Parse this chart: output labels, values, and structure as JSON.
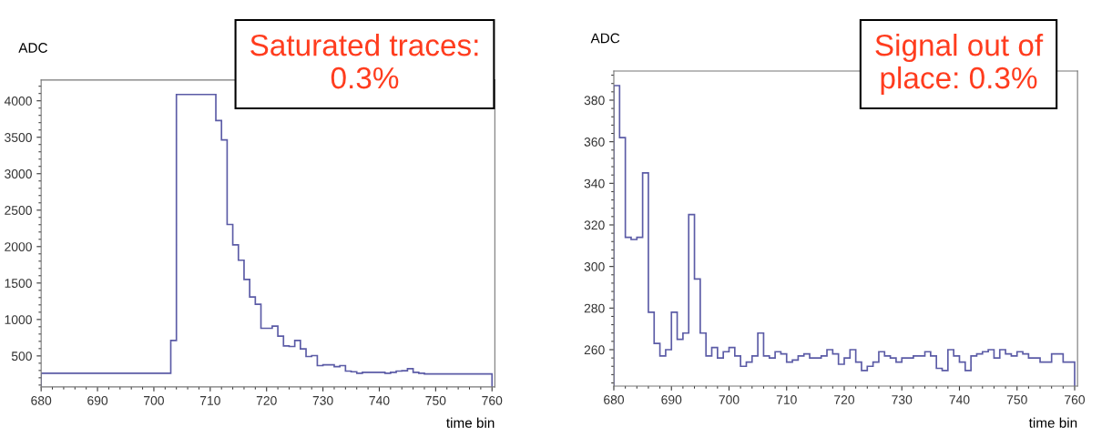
{
  "chart_data": [
    {
      "type": "histogram",
      "ylabel": "ADC",
      "xlabel": "time bin",
      "annotations": [
        "Saturated traces:\n0.3%"
      ],
      "color": "#5b5ba6",
      "bins": [
        680,
        681,
        682,
        683,
        684,
        685,
        686,
        687,
        688,
        689,
        690,
        691,
        692,
        693,
        694,
        695,
        696,
        697,
        698,
        699,
        700,
        701,
        702,
        703,
        704,
        705,
        706,
        707,
        708,
        709,
        710,
        711,
        712,
        713,
        714,
        715,
        716,
        717,
        718,
        719,
        720,
        721,
        722,
        723,
        724,
        725,
        726,
        727,
        728,
        729,
        730,
        731,
        732,
        733,
        734,
        735,
        736,
        737,
        738,
        739,
        740,
        741,
        742,
        743,
        744,
        745,
        746,
        747,
        748,
        749,
        750,
        751,
        752,
        753,
        754,
        755,
        756,
        757,
        758,
        759,
        760
      ],
      "values": [
        262,
        262,
        262,
        262,
        262,
        262,
        262,
        262,
        262,
        262,
        262,
        262,
        262,
        262,
        262,
        262,
        262,
        262,
        262,
        262,
        262,
        262,
        262,
        712,
        4087,
        4087,
        4087,
        4087,
        4087,
        4087,
        4087,
        3729,
        3463,
        2304,
        2025,
        1813,
        1550,
        1308,
        1208,
        879,
        879,
        908,
        771,
        638,
        629,
        713,
        596,
        492,
        504,
        367,
        379,
        379,
        354,
        367,
        292,
        283,
        262,
        275,
        275,
        275,
        275,
        262,
        275,
        292,
        296,
        325,
        275,
        262,
        254,
        254,
        254,
        254,
        254,
        254,
        254,
        254,
        254,
        254,
        254,
        254
      ],
      "xlim": [
        680,
        760.5
      ],
      "xticks": [
        680,
        690,
        700,
        710,
        720,
        730,
        740,
        750,
        760
      ],
      "ylim": [
        75,
        4285
      ],
      "yticks": [
        500,
        1000,
        1500,
        2000,
        2500,
        3000,
        3500,
        4000
      ]
    },
    {
      "type": "histogram",
      "ylabel": "ADC",
      "xlabel": "time bin",
      "annotations": [
        "Signal out of\nplace: 0.3%"
      ],
      "color": "#5b5ba6",
      "bins": [
        680,
        681,
        682,
        683,
        684,
        685,
        686,
        687,
        688,
        689,
        690,
        691,
        692,
        693,
        694,
        695,
        696,
        697,
        698,
        699,
        700,
        701,
        702,
        703,
        704,
        705,
        706,
        707,
        708,
        709,
        710,
        711,
        712,
        713,
        714,
        715,
        716,
        717,
        718,
        719,
        720,
        721,
        722,
        723,
        724,
        725,
        726,
        727,
        728,
        729,
        730,
        731,
        732,
        733,
        734,
        735,
        736,
        737,
        738,
        739,
        740,
        741,
        742,
        743,
        744,
        745,
        746,
        747,
        748,
        749,
        750,
        751,
        752,
        753,
        754,
        755,
        756,
        757,
        758,
        759,
        760
      ],
      "values": [
        387,
        362,
        314,
        313,
        314,
        345,
        278,
        263,
        257,
        260,
        278,
        265,
        268,
        325,
        294,
        268,
        257,
        261,
        256,
        259,
        261,
        257,
        252,
        254,
        257,
        268,
        257,
        256,
        259,
        258,
        254,
        255,
        257,
        258,
        256,
        256,
        257,
        260,
        258,
        253,
        256,
        260,
        254,
        250,
        252,
        254,
        259,
        257,
        256,
        254,
        256,
        256,
        257,
        257,
        259,
        257,
        251,
        250,
        260,
        257,
        254,
        250,
        257,
        258,
        259,
        260,
        256,
        260,
        258,
        257,
        259,
        258,
        256,
        256,
        254,
        254,
        258,
        258,
        254,
        254
      ],
      "xlim": [
        680,
        760.5
      ],
      "xticks": [
        680,
        690,
        700,
        710,
        720,
        730,
        740,
        750,
        760
      ],
      "ylim": [
        242.5,
        394
      ],
      "yticks": [
        260,
        280,
        300,
        320,
        340,
        360,
        380
      ]
    }
  ]
}
